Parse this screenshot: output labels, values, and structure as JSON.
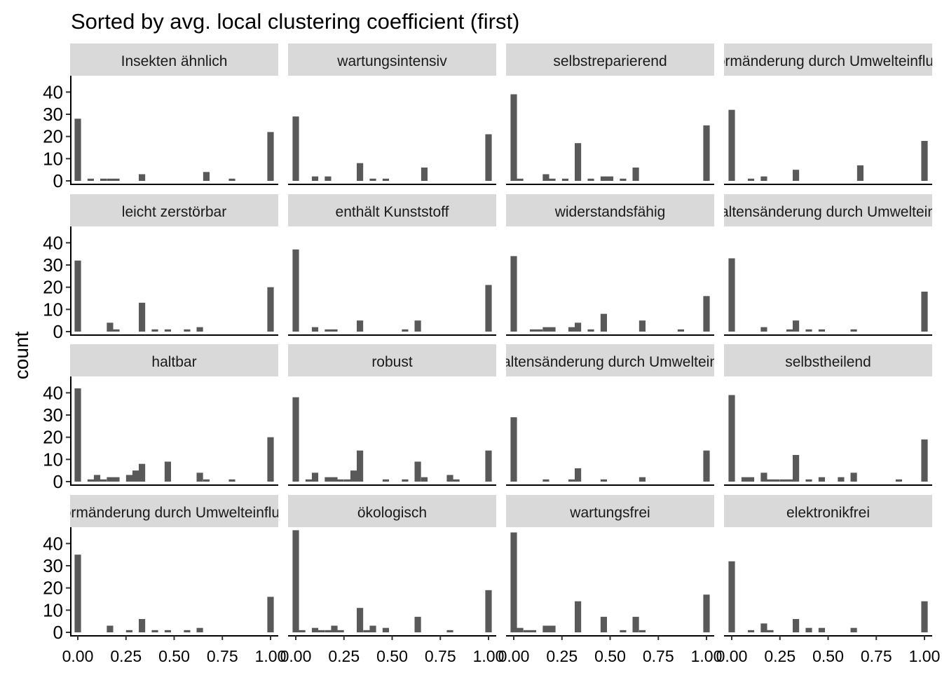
{
  "chart_data": {
    "type": "bar",
    "title": "Sorted by avg. local clustering coefficient (first)",
    "xlabel": "",
    "ylabel": "count",
    "xlim": [
      -0.04,
      1.04
    ],
    "ylim": [
      0,
      48
    ],
    "x_ticks": [
      0,
      0.25,
      0.5,
      0.75,
      1.0
    ],
    "x_tick_labels": [
      "0.00",
      "0.25",
      "0.50",
      "0.75",
      "1.00"
    ],
    "y_ticks": [
      0,
      10,
      20,
      30,
      40
    ],
    "y_tick_labels": [
      "0",
      "10",
      "20",
      "30",
      "40"
    ],
    "bar_color": "#595959",
    "strip_color": "#d9d9d9",
    "bin_width": 0.0333,
    "grid": false,
    "facets": [
      {
        "label": "Insekten ähnlich",
        "bins": [
          [
            0,
            28
          ],
          [
            0.067,
            1
          ],
          [
            0.133,
            1
          ],
          [
            0.167,
            1
          ],
          [
            0.2,
            1
          ],
          [
            0.333,
            3
          ],
          [
            0.667,
            4
          ],
          [
            0.8,
            1
          ],
          [
            1.0,
            22
          ]
        ]
      },
      {
        "label": "wartungsintensiv",
        "bins": [
          [
            0,
            29
          ],
          [
            0.1,
            2
          ],
          [
            0.167,
            2
          ],
          [
            0.333,
            8
          ],
          [
            0.4,
            1
          ],
          [
            0.467,
            1
          ],
          [
            0.667,
            6
          ],
          [
            1.0,
            21
          ]
        ]
      },
      {
        "label": "selbstreparierend",
        "bins": [
          [
            0,
            39
          ],
          [
            0.033,
            1
          ],
          [
            0.167,
            3
          ],
          [
            0.2,
            1
          ],
          [
            0.267,
            1
          ],
          [
            0.333,
            17
          ],
          [
            0.4,
            1
          ],
          [
            0.467,
            2
          ],
          [
            0.5,
            2
          ],
          [
            0.567,
            1
          ],
          [
            0.633,
            6
          ],
          [
            1.0,
            25
          ]
        ]
      },
      {
        "label": "Formänderung durch Umwelteinfluss",
        "bins": [
          [
            0,
            32
          ],
          [
            0.1,
            1
          ],
          [
            0.167,
            2
          ],
          [
            0.333,
            5
          ],
          [
            0.667,
            7
          ],
          [
            1.0,
            18
          ]
        ]
      },
      {
        "label": "leicht zerstörbar",
        "bins": [
          [
            0,
            32
          ],
          [
            0.167,
            4
          ],
          [
            0.2,
            1
          ],
          [
            0.333,
            13
          ],
          [
            0.4,
            1
          ],
          [
            0.467,
            1
          ],
          [
            0.567,
            1
          ],
          [
            0.633,
            2
          ],
          [
            1.0,
            20
          ]
        ]
      },
      {
        "label": "enthält Kunststoff",
        "bins": [
          [
            0,
            37
          ],
          [
            0.1,
            2
          ],
          [
            0.167,
            1
          ],
          [
            0.2,
            1
          ],
          [
            0.333,
            5
          ],
          [
            0.567,
            1
          ],
          [
            0.633,
            5
          ],
          [
            1.0,
            21
          ]
        ]
      },
      {
        "label": "widerstandsfähig",
        "bins": [
          [
            0,
            34
          ],
          [
            0.1,
            1
          ],
          [
            0.133,
            1
          ],
          [
            0.167,
            2
          ],
          [
            0.2,
            2
          ],
          [
            0.3,
            2
          ],
          [
            0.333,
            4
          ],
          [
            0.4,
            1
          ],
          [
            0.467,
            8
          ],
          [
            0.667,
            5
          ],
          [
            0.867,
            1
          ],
          [
            1.0,
            16
          ]
        ]
      },
      {
        "label": "Verhaltensänderung durch Umwelteinfluss",
        "bins": [
          [
            0,
            33
          ],
          [
            0.167,
            2
          ],
          [
            0.3,
            1
          ],
          [
            0.333,
            5
          ],
          [
            0.4,
            1
          ],
          [
            0.467,
            1
          ],
          [
            0.633,
            1
          ],
          [
            1.0,
            18
          ]
        ]
      },
      {
        "label": "haltbar",
        "bins": [
          [
            0,
            42
          ],
          [
            0.067,
            1
          ],
          [
            0.1,
            3
          ],
          [
            0.133,
            1
          ],
          [
            0.167,
            2
          ],
          [
            0.2,
            2
          ],
          [
            0.267,
            3
          ],
          [
            0.3,
            5
          ],
          [
            0.333,
            8
          ],
          [
            0.467,
            9
          ],
          [
            0.633,
            4
          ],
          [
            0.667,
            1
          ],
          [
            0.8,
            1
          ],
          [
            1.0,
            20
          ]
        ]
      },
      {
        "label": "robust",
        "bins": [
          [
            0,
            38
          ],
          [
            0.067,
            1
          ],
          [
            0.1,
            4
          ],
          [
            0.167,
            2
          ],
          [
            0.2,
            2
          ],
          [
            0.233,
            1
          ],
          [
            0.267,
            1
          ],
          [
            0.3,
            5
          ],
          [
            0.333,
            14
          ],
          [
            0.467,
            1
          ],
          [
            0.567,
            1
          ],
          [
            0.633,
            9
          ],
          [
            0.667,
            2
          ],
          [
            0.8,
            3
          ],
          [
            0.833,
            1
          ],
          [
            1.0,
            14
          ]
        ]
      },
      {
        "label": "Verhaltensänderung durch Umwelteinfluss",
        "bins": [
          [
            0,
            29
          ],
          [
            0.167,
            1
          ],
          [
            0.3,
            1
          ],
          [
            0.333,
            6
          ],
          [
            0.467,
            1
          ],
          [
            0.667,
            2
          ],
          [
            1.0,
            14
          ]
        ]
      },
      {
        "label": "selbstheilend",
        "bins": [
          [
            0,
            39
          ],
          [
            0.067,
            2
          ],
          [
            0.1,
            2
          ],
          [
            0.167,
            4
          ],
          [
            0.2,
            1
          ],
          [
            0.233,
            1
          ],
          [
            0.267,
            1
          ],
          [
            0.3,
            1
          ],
          [
            0.333,
            12
          ],
          [
            0.4,
            1
          ],
          [
            0.467,
            2
          ],
          [
            0.567,
            2
          ],
          [
            0.633,
            4
          ],
          [
            0.867,
            1
          ],
          [
            1.0,
            19
          ]
        ]
      },
      {
        "label": "Formänderung durch Umwelteinfluss",
        "bins": [
          [
            0,
            35
          ],
          [
            0.167,
            3
          ],
          [
            0.267,
            1
          ],
          [
            0.333,
            6
          ],
          [
            0.4,
            1
          ],
          [
            0.467,
            1
          ],
          [
            0.567,
            1
          ],
          [
            0.633,
            2
          ],
          [
            1.0,
            16
          ]
        ]
      },
      {
        "label": "ökologisch",
        "bins": [
          [
            0,
            46
          ],
          [
            0.033,
            1
          ],
          [
            0.1,
            2
          ],
          [
            0.133,
            1
          ],
          [
            0.167,
            1
          ],
          [
            0.2,
            3
          ],
          [
            0.233,
            1
          ],
          [
            0.333,
            11
          ],
          [
            0.367,
            1
          ],
          [
            0.4,
            3
          ],
          [
            0.467,
            2
          ],
          [
            0.633,
            7
          ],
          [
            0.8,
            1
          ],
          [
            1.0,
            19
          ]
        ]
      },
      {
        "label": "wartungsfrei",
        "bins": [
          [
            0,
            45
          ],
          [
            0.033,
            2
          ],
          [
            0.067,
            1
          ],
          [
            0.1,
            1
          ],
          [
            0.167,
            3
          ],
          [
            0.2,
            3
          ],
          [
            0.333,
            14
          ],
          [
            0.467,
            7
          ],
          [
            0.567,
            1
          ],
          [
            0.633,
            7
          ],
          [
            0.667,
            1
          ],
          [
            1.0,
            17
          ]
        ]
      },
      {
        "label": "elektronikfrei",
        "bins": [
          [
            0,
            32
          ],
          [
            0.1,
            1
          ],
          [
            0.167,
            4
          ],
          [
            0.2,
            1
          ],
          [
            0.333,
            6
          ],
          [
            0.4,
            2
          ],
          [
            0.467,
            2
          ],
          [
            0.633,
            2
          ],
          [
            1.0,
            14
          ]
        ]
      }
    ]
  }
}
